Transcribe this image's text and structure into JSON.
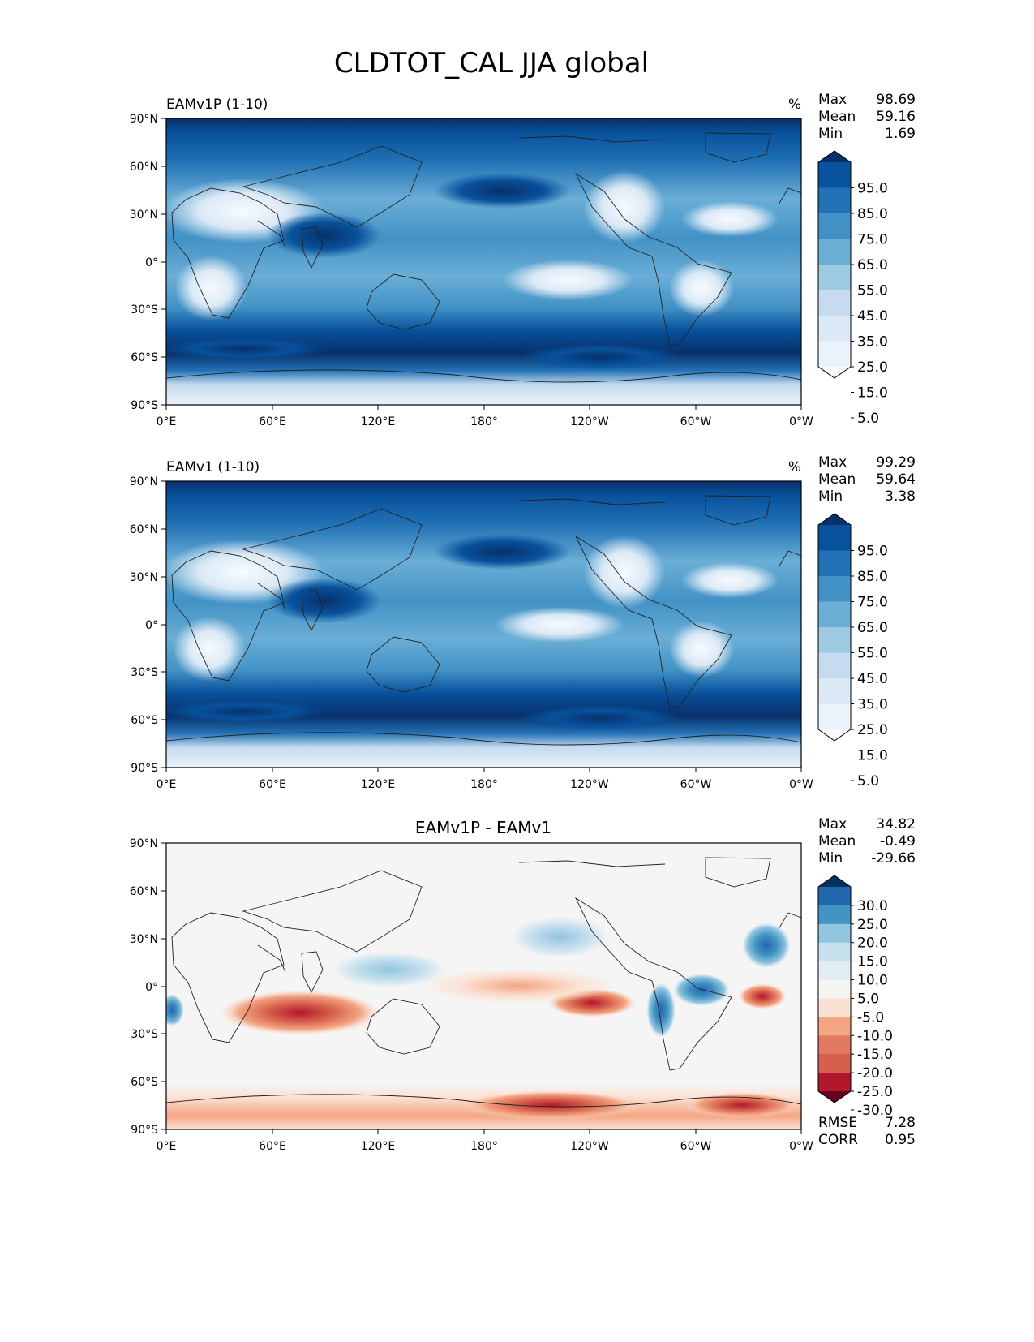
{
  "figure": {
    "title": "CLDTOT_CAL JJA global"
  },
  "axes": {
    "lon_ticks": [
      "0°E",
      "60°E",
      "120°E",
      "180°",
      "120°W",
      "60°W",
      "0°W"
    ],
    "lat_ticks": [
      "90°N",
      "60°N",
      "30°N",
      "0°",
      "30°S",
      "60°S",
      "90°S"
    ]
  },
  "chart_data": [
    {
      "type": "heatmap",
      "title": "EAMv1P (1-10)",
      "units": "%",
      "stats": {
        "max_label": "Max",
        "max": "98.69",
        "mean_label": "Mean",
        "mean": "59.16",
        "min_label": "Min",
        "min": "1.69"
      },
      "colorbar": {
        "levels": [
          "95.0",
          "85.0",
          "75.0",
          "65.0",
          "55.0",
          "45.0",
          "35.0",
          "25.0",
          "15.0",
          "5.0"
        ],
        "colors": [
          "#08306b",
          "#08519c",
          "#2171b5",
          "#4292c6",
          "#6baed6",
          "#9ecae1",
          "#c6dbef",
          "#dbe9f6",
          "#eaf2fb",
          "#f7fbff"
        ]
      },
      "xlim": [
        0,
        360
      ],
      "ylim": [
        -90,
        90
      ]
    },
    {
      "type": "heatmap",
      "title": "EAMv1 (1-10)",
      "units": "%",
      "stats": {
        "max_label": "Max",
        "max": "99.29",
        "mean_label": "Mean",
        "mean": "59.64",
        "min_label": "Min",
        "min": "3.38"
      },
      "colorbar": {
        "levels": [
          "95.0",
          "85.0",
          "75.0",
          "65.0",
          "55.0",
          "45.0",
          "35.0",
          "25.0",
          "15.0",
          "5.0"
        ],
        "colors": [
          "#08306b",
          "#08519c",
          "#2171b5",
          "#4292c6",
          "#6baed6",
          "#9ecae1",
          "#c6dbef",
          "#dbe9f6",
          "#eaf2fb",
          "#f7fbff"
        ]
      },
      "xlim": [
        0,
        360
      ],
      "ylim": [
        -90,
        90
      ]
    },
    {
      "type": "heatmap",
      "title": "EAMv1P - EAMv1",
      "units": "",
      "stats": {
        "max_label": "Max",
        "max": "34.82",
        "mean_label": "Mean",
        "mean": "-0.49",
        "min_label": "Min",
        "min": "-29.66"
      },
      "extra_stats": {
        "rmse_label": "RMSE",
        "rmse": "7.28",
        "corr_label": "CORR",
        "corr": "0.95"
      },
      "colorbar": {
        "levels": [
          "30.0",
          "25.0",
          "20.0",
          "15.0",
          "10.0",
          "5.0",
          "-5.0",
          "-10.0",
          "-15.0",
          "-20.0",
          "-25.0",
          "-30.0"
        ],
        "colors": [
          "#053061",
          "#2166ac",
          "#4393c3",
          "#92c5de",
          "#c6e0ee",
          "#e2edf3",
          "#f5f5f5",
          "#fbe1d3",
          "#f4a582",
          "#e07b62",
          "#d6604d",
          "#b2182b",
          "#67001f"
        ]
      },
      "xlim": [
        0,
        360
      ],
      "ylim": [
        -90,
        90
      ]
    }
  ]
}
